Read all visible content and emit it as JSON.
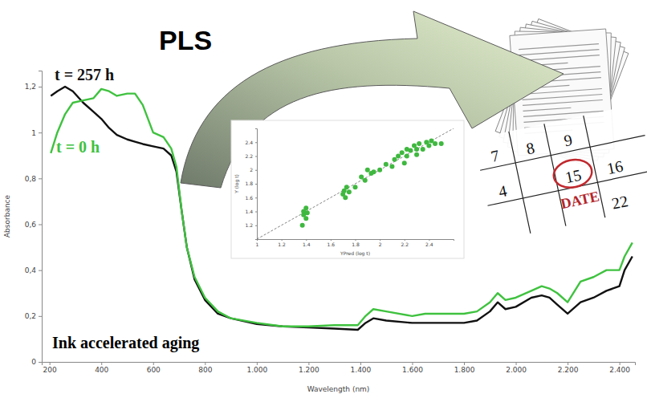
{
  "chart_data": [
    {
      "type": "line",
      "xlabel": "Wavelength (nm)",
      "ylabel": "Absorbance",
      "annotations": [
        "Ink accelerated aging"
      ],
      "x": [
        205,
        230,
        260,
        290,
        330,
        370,
        400,
        430,
        460,
        500,
        530,
        560,
        600,
        640,
        670,
        690,
        710,
        730,
        760,
        800,
        850,
        900,
        1000,
        1100,
        1200,
        1300,
        1390,
        1420,
        1450,
        1500,
        1600,
        1650,
        1700,
        1800,
        1850,
        1900,
        1930,
        1960,
        2000,
        2060,
        2100,
        2130,
        2160,
        2200,
        2250,
        2300,
        2350,
        2400,
        2420,
        2450
      ],
      "series": [
        {
          "name": "t = 257 h",
          "color": "#111111",
          "values": [
            1.16,
            1.18,
            1.2,
            1.18,
            1.13,
            1.09,
            1.06,
            1.02,
            0.99,
            0.97,
            0.96,
            0.95,
            0.94,
            0.93,
            0.9,
            0.83,
            0.66,
            0.5,
            0.36,
            0.27,
            0.21,
            0.19,
            0.165,
            0.155,
            0.15,
            0.145,
            0.14,
            0.17,
            0.19,
            0.18,
            0.17,
            0.17,
            0.17,
            0.17,
            0.18,
            0.22,
            0.26,
            0.23,
            0.24,
            0.28,
            0.29,
            0.28,
            0.25,
            0.21,
            0.26,
            0.28,
            0.31,
            0.33,
            0.4,
            0.46
          ]
        },
        {
          "name": "t = 0 h",
          "color": "#3fc23f",
          "values": [
            0.91,
            1.0,
            1.08,
            1.13,
            1.14,
            1.15,
            1.19,
            1.18,
            1.16,
            1.17,
            1.17,
            1.12,
            1.0,
            0.98,
            0.93,
            0.85,
            0.66,
            0.5,
            0.37,
            0.28,
            0.22,
            0.19,
            0.17,
            0.155,
            0.155,
            0.16,
            0.16,
            0.2,
            0.23,
            0.22,
            0.2,
            0.21,
            0.21,
            0.21,
            0.22,
            0.26,
            0.3,
            0.27,
            0.28,
            0.31,
            0.33,
            0.32,
            0.3,
            0.26,
            0.35,
            0.37,
            0.4,
            0.4,
            0.46,
            0.52
          ]
        }
      ],
      "xlim": [
        170,
        2460
      ],
      "xticks": [
        200,
        400,
        600,
        800,
        {
          "value": 1000,
          "label": "1.000"
        },
        {
          "value": 1200,
          "label": "1.200"
        },
        {
          "value": 1400,
          "label": "1.400"
        },
        {
          "value": 1600,
          "label": "1.600"
        },
        {
          "value": 1800,
          "label": "1.800"
        },
        {
          "value": 2000,
          "label": "2.000"
        },
        {
          "value": 2200,
          "label": "2.200"
        },
        {
          "value": 2400,
          "label": "2.400"
        }
      ],
      "ylim": [
        0,
        1.27
      ],
      "yticks": [
        0,
        {
          "value": 0.2,
          "label": "0,2"
        },
        {
          "value": 0.4,
          "label": "0,4"
        },
        {
          "value": 0.6,
          "label": "0,6"
        },
        {
          "value": 0.8,
          "label": "0,8"
        },
        1,
        {
          "value": 1.2,
          "label": "1,2"
        }
      ],
      "grid": false
    },
    {
      "type": "scatter",
      "xlabel": "YPred (log t)",
      "ylabel": "Y (log t)",
      "color": "#3fb83f",
      "marker": "circle",
      "x": [
        1.37,
        1.38,
        1.38,
        1.4,
        1.4,
        1.41,
        1.7,
        1.71,
        1.72,
        1.73,
        1.75,
        1.8,
        1.85,
        1.88,
        1.9,
        1.93,
        1.95,
        2.0,
        2.05,
        2.1,
        2.12,
        2.15,
        2.18,
        2.2,
        2.22,
        2.22,
        2.25,
        2.28,
        2.3,
        2.3,
        2.32,
        2.35,
        2.38,
        2.4,
        2.42,
        2.45,
        2.5
      ],
      "values": [
        1.2,
        1.35,
        1.4,
        1.3,
        1.45,
        1.38,
        1.65,
        1.7,
        1.6,
        1.75,
        1.68,
        1.75,
        1.9,
        1.85,
        2.0,
        1.95,
        1.97,
        2.0,
        2.08,
        2.05,
        2.15,
        2.2,
        2.25,
        2.1,
        2.3,
        2.2,
        2.28,
        2.35,
        2.22,
        2.3,
        2.38,
        2.3,
        2.4,
        2.35,
        2.42,
        2.38,
        2.38
      ],
      "xlim": [
        1,
        2.6
      ],
      "xticks": [
        1,
        1.2,
        1.4,
        1.6,
        1.8,
        2,
        2.2,
        2.4
      ],
      "ylim": [
        1,
        2.6
      ],
      "yticks": [
        1.2,
        1.4,
        1.6,
        1.8,
        2,
        2.2,
        2.4
      ],
      "grid": false
    }
  ],
  "graphic": {
    "arrow_label": "PLS",
    "calendar_days": [
      "7",
      "8",
      "9",
      "4",
      "15",
      "16",
      "22"
    ],
    "stamp": "DATE"
  }
}
